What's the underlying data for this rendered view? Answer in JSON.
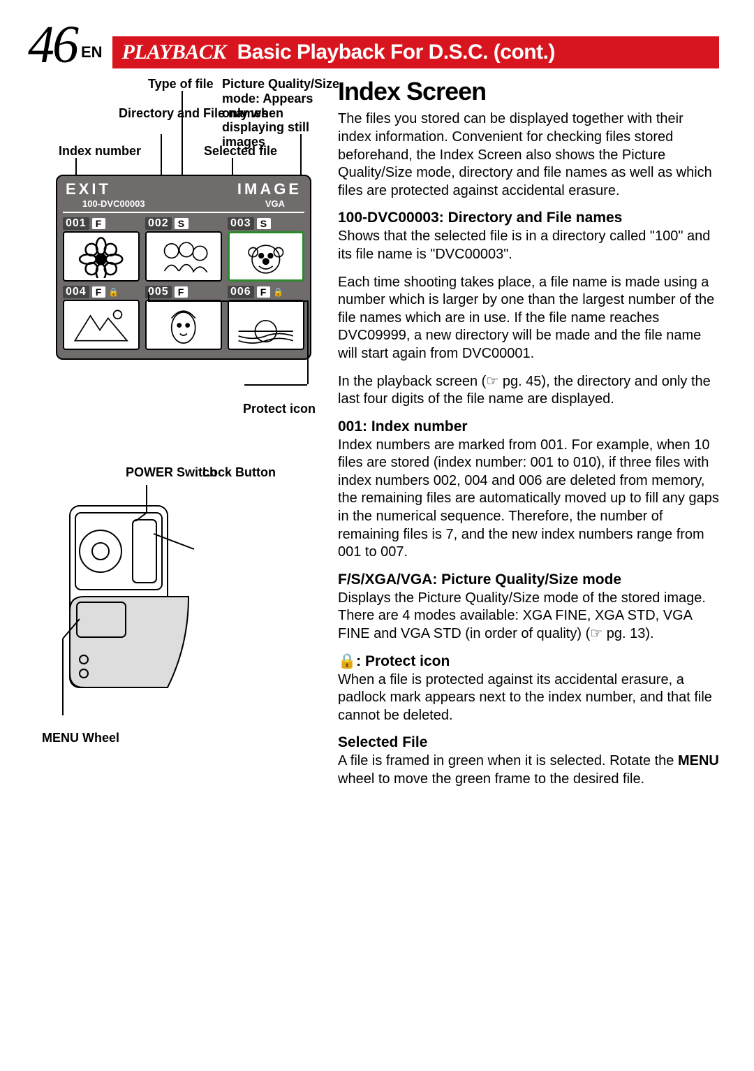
{
  "page": {
    "number": "46",
    "lang": "EN",
    "header_italic": "PLAYBACK",
    "header_rest": "Basic Playback For D.S.C.  (cont.)"
  },
  "callouts": {
    "type_of_file": "Type of file",
    "dir_file_names": "Directory and File names",
    "index_number": "Index number",
    "pic_quality": "Picture Quality/Size mode: Appears only when displaying still images",
    "selected_file": "Selected file",
    "protect_icon": "Protect icon",
    "power_switch": "POWER Switch",
    "lock_button": "Lock Button",
    "menu_wheel": "MENU Wheel"
  },
  "diagram": {
    "top_left": "EXIT",
    "top_right": "IMAGE",
    "sub_left": "100-DVC00003",
    "sub_right": "VGA",
    "thumbs": [
      {
        "idx": "001",
        "mode": "F",
        "lock": false,
        "selected": false,
        "art": "flower"
      },
      {
        "idx": "002",
        "mode": "S",
        "lock": false,
        "selected": false,
        "art": "people"
      },
      {
        "idx": "003",
        "mode": "S",
        "lock": false,
        "selected": true,
        "art": "clown"
      },
      {
        "idx": "004",
        "mode": "F",
        "lock": true,
        "selected": false,
        "art": "mountain"
      },
      {
        "idx": "005",
        "mode": "F",
        "lock": false,
        "selected": false,
        "art": "face"
      },
      {
        "idx": "006",
        "mode": "F",
        "lock": true,
        "selected": false,
        "art": "sunset"
      }
    ]
  },
  "index_screen": {
    "title": "Index Screen",
    "intro": "The files you stored can be displayed together with their index information. Convenient for checking files stored beforehand, the Index Screen also shows the Picture Quality/Size mode, directory and file names as well as which files are protected against accidental erasure."
  },
  "sections": [
    {
      "heading": "100-DVC00003: Directory and File names",
      "paras": [
        "Shows that the selected file is in a directory called \"100\" and its file name is \"DVC00003\".",
        "Each time shooting takes place, a file name is made using a number which is larger by one than the largest number of the file names which are in use. If the file name reaches DVC09999, a new directory will be made and the file name will start again from DVC00001.",
        "In the playback screen (☞ pg. 45), the directory and only the last four digits of the file name are displayed."
      ]
    },
    {
      "heading": "001: Index number",
      "paras": [
        "Index numbers are marked from 001. For example, when 10 files are stored (index number: 001 to 010), if three files with index numbers 002, 004 and 006 are deleted from memory, the remaining files are automatically moved up to fill any gaps in the numerical sequence. Therefore, the number of remaining files is 7, and the new index numbers range from 001 to 007."
      ]
    },
    {
      "heading": "F/S/XGA/VGA: Picture Quality/Size mode",
      "paras": [
        "Displays the Picture Quality/Size mode of the stored image. There are 4 modes available: XGA FINE, XGA STD, VGA FINE and VGA STD (in order of quality) (☞ pg. 13)."
      ]
    },
    {
      "heading_prefix_icon": "🔒",
      "heading": ": Protect icon",
      "paras": [
        "When a file is protected against its accidental erasure, a padlock mark appears next to the index number, and that file cannot be deleted."
      ]
    },
    {
      "heading": "Selected File",
      "paras": [
        "A file is framed in green when it is selected. Rotate the MENU wheel to move the green frame to the desired file."
      ],
      "bold_word": "MENU"
    }
  ],
  "colors": {
    "header_bg": "#d8151e",
    "diagram_bg": "#706c6c",
    "selected_border": "#2a8a2a"
  }
}
